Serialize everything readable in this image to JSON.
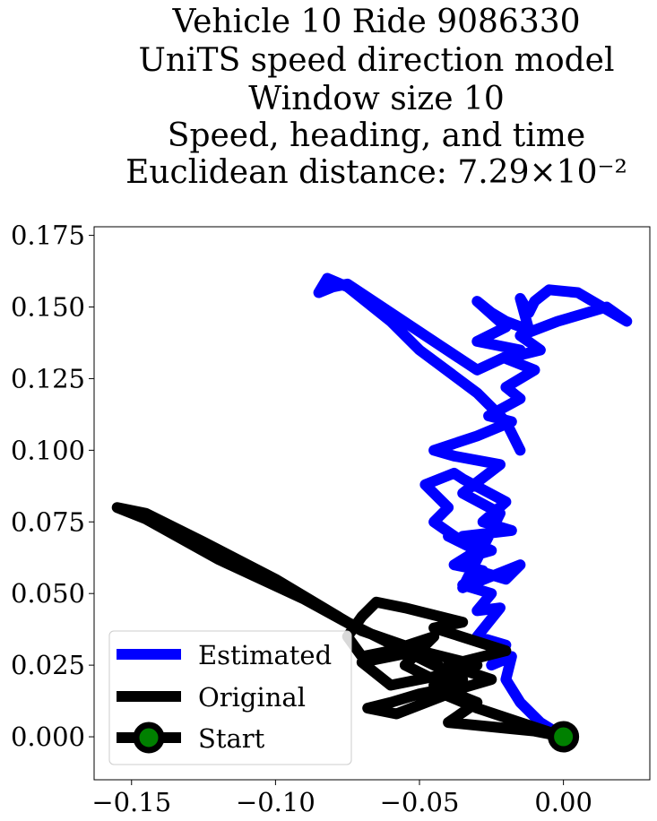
{
  "chart_data": {
    "type": "line",
    "title_lines": [
      "Vehicle 10 Ride 9086330",
      "UniTS speed direction model",
      "Window size 10",
      "Speed, heading, and time",
      "Euclidean distance: 7.29×10⁻²"
    ],
    "xlabel": "",
    "ylabel": "",
    "xlim": [
      -0.163,
      0.03
    ],
    "ylim": [
      -0.015,
      0.178
    ],
    "x_ticks": [
      -0.15,
      -0.1,
      -0.05,
      0.0
    ],
    "x_tick_labels": [
      "−0.15",
      "−0.10",
      "−0.05",
      "0.00"
    ],
    "y_ticks": [
      0.0,
      0.025,
      0.05,
      0.075,
      0.1,
      0.125,
      0.15,
      0.175
    ],
    "y_tick_labels": [
      "0.000",
      "0.025",
      "0.050",
      "0.075",
      "0.100",
      "0.125",
      "0.150",
      "0.175"
    ],
    "grid": false,
    "legend_position": "lower-left",
    "series": [
      {
        "name": "Estimated",
        "color": "#0000ff",
        "x": [
          0.0,
          -0.008,
          -0.015,
          -0.02,
          -0.018,
          -0.025,
          -0.02,
          -0.03,
          -0.022,
          -0.03,
          -0.025,
          -0.035,
          -0.028,
          -0.038,
          -0.03,
          -0.04,
          -0.035,
          -0.045,
          -0.04,
          -0.048,
          -0.038,
          -0.035,
          -0.02,
          -0.028,
          -0.018,
          -0.035,
          -0.025,
          -0.032,
          -0.03,
          -0.02,
          -0.015,
          -0.035,
          -0.022,
          -0.035,
          -0.022,
          -0.038,
          -0.045,
          -0.03,
          -0.018,
          -0.026,
          -0.015,
          -0.02,
          -0.01,
          -0.02,
          -0.008,
          -0.015,
          -0.002,
          0.015,
          0.022,
          0.005,
          -0.005,
          -0.01,
          -0.012,
          -0.015,
          -0.012,
          -0.02,
          -0.025,
          -0.03,
          -0.02,
          -0.03,
          -0.015,
          -0.03,
          -0.045,
          -0.06,
          -0.075,
          -0.08,
          -0.085,
          -0.082,
          -0.075,
          -0.06,
          -0.05,
          -0.03,
          -0.02,
          -0.015
        ],
        "y": [
          0.0,
          0.005,
          0.012,
          0.02,
          0.028,
          0.025,
          0.032,
          0.035,
          0.045,
          0.044,
          0.05,
          0.053,
          0.058,
          0.06,
          0.065,
          0.07,
          0.068,
          0.075,
          0.08,
          0.088,
          0.092,
          0.09,
          0.082,
          0.075,
          0.072,
          0.07,
          0.065,
          0.063,
          0.058,
          0.055,
          0.06,
          0.052,
          0.078,
          0.085,
          0.095,
          0.098,
          0.1,
          0.105,
          0.11,
          0.112,
          0.118,
          0.122,
          0.128,
          0.132,
          0.135,
          0.14,
          0.145,
          0.15,
          0.145,
          0.155,
          0.156,
          0.152,
          0.148,
          0.153,
          0.142,
          0.145,
          0.148,
          0.152,
          0.143,
          0.138,
          0.135,
          0.128,
          0.138,
          0.148,
          0.158,
          0.157,
          0.155,
          0.16,
          0.157,
          0.145,
          0.135,
          0.12,
          0.11,
          0.1
        ]
      },
      {
        "name": "Original",
        "color": "#000000",
        "x": [
          0.0,
          -0.015,
          -0.03,
          -0.042,
          -0.025,
          -0.04,
          -0.02,
          -0.045,
          -0.035,
          -0.055,
          -0.065,
          -0.07,
          -0.075,
          -0.07,
          -0.06,
          -0.045,
          -0.055,
          -0.045,
          -0.035,
          -0.05,
          -0.06,
          -0.068,
          -0.058,
          -0.04,
          -0.035,
          -0.075,
          -0.1,
          -0.125,
          -0.145,
          -0.155,
          -0.145,
          -0.12,
          -0.09,
          -0.07,
          -0.05,
          -0.04,
          -0.06,
          -0.07,
          -0.05,
          -0.03,
          -0.045,
          -0.03,
          -0.04,
          -0.02,
          -0.01,
          0.0
        ],
        "y": [
          0.0,
          0.005,
          0.01,
          0.015,
          0.02,
          0.025,
          0.03,
          0.038,
          0.04,
          0.045,
          0.047,
          0.042,
          0.035,
          0.028,
          0.03,
          0.035,
          0.025,
          0.02,
          0.018,
          0.015,
          0.012,
          0.01,
          0.008,
          0.015,
          0.02,
          0.04,
          0.055,
          0.068,
          0.078,
          0.08,
          0.076,
          0.062,
          0.048,
          0.037,
          0.03,
          0.022,
          0.018,
          0.026,
          0.03,
          0.025,
          0.018,
          0.012,
          0.005,
          0.003,
          0.002,
          0.0
        ]
      },
      {
        "name": "Start",
        "color": "#000000",
        "marker_face": "#008000",
        "x": [
          0.0
        ],
        "y": [
          0.0
        ]
      }
    ]
  }
}
